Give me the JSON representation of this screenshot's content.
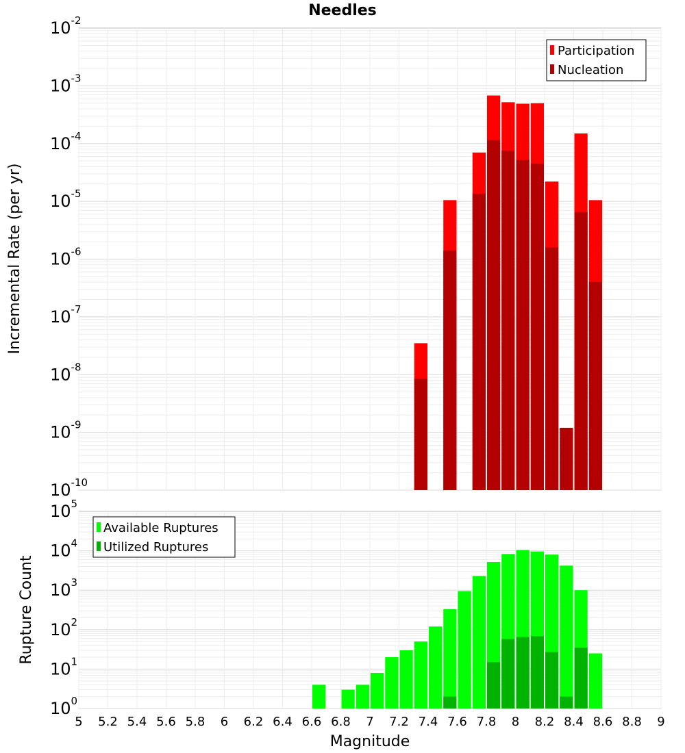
{
  "chart_data": [
    {
      "type": "bar",
      "title": "Needles",
      "xlabel": "",
      "ylabel": "Incremental Rate (per yr)",
      "yscale": "log",
      "ylim": [
        1e-10,
        0.01
      ],
      "xlim": [
        5,
        9
      ],
      "bar_width": 0.1,
      "grid": true,
      "legend_position": "top-right",
      "x": [
        7.35,
        7.55,
        7.75,
        7.85,
        7.95,
        8.05,
        8.15,
        8.25,
        8.35,
        8.45,
        8.55
      ],
      "series": [
        {
          "name": "Participation",
          "color": "#ff0000",
          "values": [
            3.5e-08,
            1.05e-05,
            7e-05,
            0.00068,
            0.00052,
            0.00049,
            0.0005,
            2.2e-05,
            1.2e-09,
            0.00015,
            1.05e-05
          ]
        },
        {
          "name": "Nucleation",
          "color": "#b30000",
          "values": [
            8.5e-09,
            1.4e-06,
            1.35e-05,
            0.000115,
            7.5e-05,
            5.2e-05,
            4.5e-05,
            1.6e-06,
            1.2e-09,
            6.5e-06,
            4e-07
          ]
        }
      ]
    },
    {
      "type": "bar",
      "title": "",
      "xlabel": "Magnitude",
      "ylabel": "Rupture Count",
      "yscale": "log",
      "ylim": [
        1,
        100000.0
      ],
      "xlim": [
        5,
        9
      ],
      "bar_width": 0.1,
      "grid": true,
      "legend_position": "top-left",
      "x_ticks": [
        "5",
        "5.2",
        "5.4",
        "5.6",
        "5.8",
        "6",
        "6.2",
        "6.4",
        "6.6",
        "6.8",
        "7",
        "7.2",
        "7.4",
        "7.6",
        "7.8",
        "8",
        "8.2",
        "8.4",
        "8.6",
        "8.8",
        "9"
      ],
      "x": [
        6.65,
        6.85,
        6.95,
        7.05,
        7.15,
        7.25,
        7.35,
        7.45,
        7.55,
        7.65,
        7.75,
        7.85,
        7.95,
        8.05,
        8.15,
        8.25,
        8.35,
        8.45,
        8.55
      ],
      "series": [
        {
          "name": "Available Ruptures",
          "color": "#00ff00",
          "values": [
            4,
            3,
            4,
            8,
            20,
            30,
            50,
            120,
            330,
            950,
            2300,
            5200,
            8300,
            10500,
            9600,
            8000,
            4200,
            1000,
            25
          ]
        },
        {
          "name": "Utilized Ruptures",
          "color": "#00b300",
          "values": [
            0,
            0,
            0,
            0,
            0,
            0,
            1,
            0,
            2,
            1,
            1,
            15,
            58,
            65,
            68,
            27,
            2,
            35,
            1
          ]
        }
      ]
    }
  ]
}
